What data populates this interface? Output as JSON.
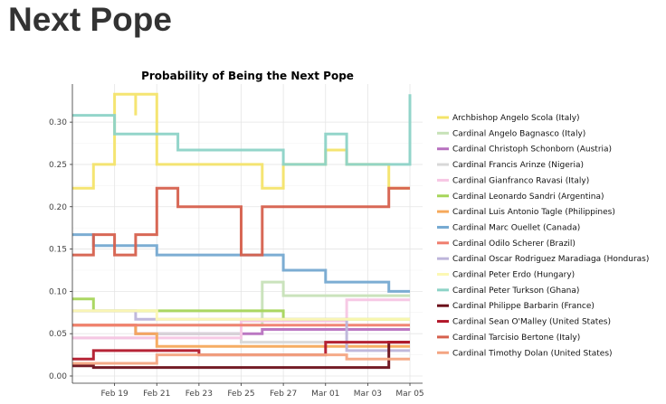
{
  "page": {
    "title": "Next Pope"
  },
  "chart_data": {
    "type": "line",
    "title": "Probability of Being the Next Pope",
    "xlabel": "",
    "ylabel": "",
    "ylim": [
      0,
      0.345
    ],
    "xlim": [
      "2013-02-17",
      "2013-03-05"
    ],
    "grid": true,
    "legend_position": "right",
    "x_ticks": [
      "Feb 19",
      "Feb 21",
      "Feb 23",
      "Feb 25",
      "Feb 27",
      "Mar 01",
      "Mar 03",
      "Mar 05"
    ],
    "x_tick_dates": [
      "2013-02-19",
      "2013-02-21",
      "2013-02-23",
      "2013-02-25",
      "2013-02-27",
      "2013-03-01",
      "2013-03-03",
      "2013-03-05"
    ],
    "y_ticks": [
      "0.00",
      "0.05",
      "0.10",
      "0.15",
      "0.20",
      "0.25",
      "0.30"
    ],
    "y_tick_values": [
      0,
      0.05,
      0.1,
      0.15,
      0.2,
      0.25,
      0.3
    ],
    "series": [
      {
        "name": "Archbishop Angelo Scola (Italy)",
        "color": "#F4E46A",
        "x": [
          "2013-02-17",
          "2013-02-18",
          "2013-02-18",
          "2013-02-19",
          "2013-02-19",
          "2013-02-20",
          "2013-02-20",
          "2013-02-20",
          "2013-02-20",
          "2013-02-21",
          "2013-02-21",
          "2013-02-26",
          "2013-02-26",
          "2013-02-27",
          "2013-02-27",
          "2013-03-01",
          "2013-03-01",
          "2013-03-02",
          "2013-03-02",
          "2013-03-03",
          "2013-03-03",
          "2013-03-04",
          "2013-03-04",
          "2013-03-05"
        ],
        "y": [
          0.222,
          0.222,
          0.25,
          0.25,
          0.333,
          0.333,
          0.308,
          0.308,
          0.333,
          0.333,
          0.25,
          0.25,
          0.222,
          0.222,
          0.25,
          0.25,
          0.267,
          0.267,
          0.25,
          0.25,
          0.25,
          0.25,
          0.222,
          0.222
        ]
      },
      {
        "name": "Cardinal Angelo Bagnasco (Italy)",
        "color": "#C7E2B8",
        "x": [
          "2013-02-17",
          "2013-02-26",
          "2013-02-26",
          "2013-02-27",
          "2013-02-27",
          "2013-03-05"
        ],
        "y": [
          0.06,
          0.06,
          0.111,
          0.111,
          0.095,
          0.095
        ]
      },
      {
        "name": "Cardinal Christoph Schonborn (Austria)",
        "color": "#B771BF",
        "x": [
          "2013-02-17",
          "2013-02-20",
          "2013-02-20",
          "2013-02-26",
          "2013-02-26",
          "2013-03-05"
        ],
        "y": [
          0.06,
          0.06,
          0.05,
          0.05,
          0.055,
          0.055
        ]
      },
      {
        "name": "Cardinal Francis Arinze (Nigeria)",
        "color": "#D8D8D8",
        "x": [
          "2013-02-17",
          "2013-02-21",
          "2013-02-21",
          "2013-02-25",
          "2013-02-25",
          "2013-03-05"
        ],
        "y": [
          0.045,
          0.045,
          0.05,
          0.05,
          0.04,
          0.04
        ]
      },
      {
        "name": "Cardinal Gianfranco Ravasi (Italy)",
        "color": "#F7C6E4",
        "x": [
          "2013-02-17",
          "2013-02-25",
          "2013-02-25",
          "2013-03-02",
          "2013-03-02",
          "2013-03-05"
        ],
        "y": [
          0.045,
          0.045,
          0.065,
          0.065,
          0.09,
          0.09
        ]
      },
      {
        "name": "Cardinal Leonardo Sandri (Argentina)",
        "color": "#A6D55A",
        "x": [
          "2013-02-17",
          "2013-02-18",
          "2013-02-18",
          "2013-02-21",
          "2013-02-21",
          "2013-02-27",
          "2013-02-27",
          "2013-03-05"
        ],
        "y": [
          0.091,
          0.091,
          0.077,
          0.077,
          0.077,
          0.077,
          0.067,
          0.067
        ]
      },
      {
        "name": "Cardinal Luis Antonio Tagle (Philippines)",
        "color": "#F6A95B",
        "x": [
          "2013-02-17",
          "2013-02-20",
          "2013-02-20",
          "2013-02-21",
          "2013-02-21",
          "2013-03-05"
        ],
        "y": [
          0.06,
          0.06,
          0.05,
          0.05,
          0.035,
          0.035
        ]
      },
      {
        "name": "Cardinal Marc Ouellet (Canada)",
        "color": "#75A9D1",
        "x": [
          "2013-02-17",
          "2013-02-18",
          "2013-02-18",
          "2013-02-21",
          "2013-02-21",
          "2013-02-27",
          "2013-02-27",
          "2013-03-01",
          "2013-03-01",
          "2013-03-04",
          "2013-03-04",
          "2013-03-05"
        ],
        "y": [
          0.167,
          0.167,
          0.154,
          0.154,
          0.143,
          0.143,
          0.125,
          0.125,
          0.111,
          0.111,
          0.1,
          0.1
        ]
      },
      {
        "name": "Cardinal Odilo Scherer (Brazil)",
        "color": "#F07E6E",
        "x": [
          "2013-02-17",
          "2013-03-05"
        ],
        "y": [
          0.06,
          0.06
        ]
      },
      {
        "name": "Cardinal Oscar Rodriguez Maradiaga (Honduras)",
        "color": "#BDB5DA",
        "x": [
          "2013-02-17",
          "2013-02-20",
          "2013-02-20",
          "2013-03-02",
          "2013-03-02",
          "2013-03-05"
        ],
        "y": [
          0.077,
          0.077,
          0.067,
          0.067,
          0.03,
          0.03
        ]
      },
      {
        "name": "Cardinal Peter Erdo (Hungary)",
        "color": "#FCF8B3",
        "x": [
          "2013-02-17",
          "2013-02-21",
          "2013-02-21",
          "2013-03-05"
        ],
        "y": [
          0.077,
          0.077,
          0.067,
          0.067
        ]
      },
      {
        "name": "Cardinal Peter Turkson (Ghana)",
        "color": "#8DD3C7",
        "x": [
          "2013-02-17",
          "2013-02-19",
          "2013-02-19",
          "2013-02-21",
          "2013-02-21",
          "2013-02-22",
          "2013-02-22",
          "2013-02-27",
          "2013-02-27",
          "2013-03-01",
          "2013-03-01",
          "2013-03-02",
          "2013-03-02",
          "2013-03-05",
          "2013-03-05"
        ],
        "y": [
          0.308,
          0.308,
          0.286,
          0.286,
          0.286,
          0.286,
          0.267,
          0.267,
          0.25,
          0.25,
          0.286,
          0.286,
          0.25,
          0.25,
          0.333
        ]
      },
      {
        "name": "Cardinal Philippe Barbarin (France)",
        "color": "#6B0F1A",
        "x": [
          "2013-02-17",
          "2013-02-18",
          "2013-02-18",
          "2013-03-04",
          "2013-03-04",
          "2013-03-05"
        ],
        "y": [
          0.012,
          0.012,
          0.01,
          0.01,
          0.04,
          0.04
        ]
      },
      {
        "name": "Cardinal Sean O'Malley (United States)",
        "color": "#B2182B",
        "x": [
          "2013-02-17",
          "2013-02-18",
          "2013-02-18",
          "2013-02-23",
          "2013-02-23",
          "2013-03-01",
          "2013-03-01",
          "2013-03-05"
        ],
        "y": [
          0.02,
          0.02,
          0.03,
          0.03,
          0.025,
          0.025,
          0.04,
          0.04
        ]
      },
      {
        "name": "Cardinal Tarcisio Bertone (Italy)",
        "color": "#D6604D",
        "x": [
          "2013-02-17",
          "2013-02-18",
          "2013-02-18",
          "2013-02-19",
          "2013-02-19",
          "2013-02-20",
          "2013-02-20",
          "2013-02-21",
          "2013-02-21",
          "2013-02-22",
          "2013-02-22",
          "2013-02-25",
          "2013-02-25",
          "2013-02-26",
          "2013-02-26",
          "2013-03-04",
          "2013-03-04",
          "2013-03-05"
        ],
        "y": [
          0.143,
          0.143,
          0.167,
          0.167,
          0.143,
          0.143,
          0.167,
          0.167,
          0.222,
          0.222,
          0.2,
          0.2,
          0.143,
          0.143,
          0.2,
          0.2,
          0.222,
          0.222
        ]
      },
      {
        "name": "Cardinal Timothy Dolan (United States)",
        "color": "#F4A582",
        "x": [
          "2013-02-17",
          "2013-02-21",
          "2013-02-21",
          "2013-03-02",
          "2013-03-02",
          "2013-03-05"
        ],
        "y": [
          0.015,
          0.015,
          0.025,
          0.025,
          0.02,
          0.02
        ]
      }
    ]
  }
}
